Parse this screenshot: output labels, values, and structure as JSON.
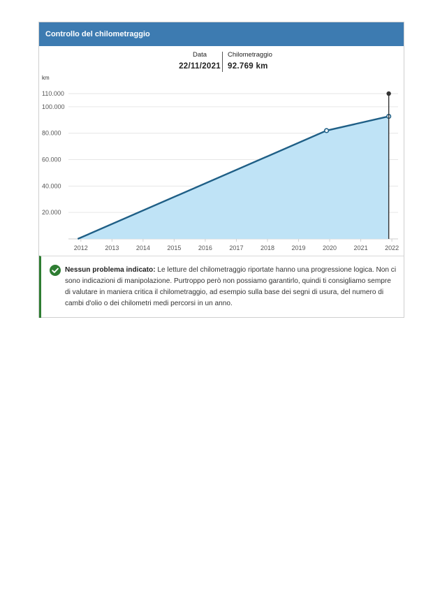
{
  "header": {
    "title": "Controllo del chilometraggio"
  },
  "readout": {
    "date_label": "Data",
    "date_value": "22/11/2021",
    "km_label": "Chilometraggio",
    "km_value": "92.769 km"
  },
  "chart_data": {
    "type": "area",
    "ylabel": "km",
    "xlabel": "",
    "x_ticks": [
      "2012",
      "2013",
      "2014",
      "2015",
      "2016",
      "2017",
      "2018",
      "2019",
      "2020",
      "2021",
      "2022"
    ],
    "y_ticks": [
      {
        "value": 20000,
        "label": "20.000"
      },
      {
        "value": 40000,
        "label": "40.000"
      },
      {
        "value": 60000,
        "label": "60.000"
      },
      {
        "value": 80000,
        "label": "80.000"
      },
      {
        "value": 100000,
        "label": "100.000"
      },
      {
        "value": 110000,
        "label": "110.000"
      }
    ],
    "xlim": [
      2011.6,
      2022.2
    ],
    "ylim": [
      0,
      110000
    ],
    "series": [
      {
        "points": [
          {
            "x": 2011.9,
            "y": 0
          },
          {
            "x": 2019.9,
            "y": 82000
          },
          {
            "x": 2021.9,
            "y": 92769
          }
        ]
      }
    ],
    "marker": {
      "x": 2021.9,
      "y": 92769,
      "label": "22/11/2021"
    },
    "colors": {
      "line": "#1f5f86",
      "fill": "#bfe3f6",
      "grid": "#e6e6e6",
      "marker": "#333333"
    }
  },
  "notice": {
    "bold": "Nessun problema indicato:",
    "text": " Le letture del chilometraggio riportate hanno una progressione logica. Non ci sono indicazioni di manipolazione. Purtroppo però non possiamo garantirlo, quindi ti consigliamo sempre di valutare in maniera critica il chilometraggio, ad esempio sulla base dei segni di usura, del numero di cambi d'olio o dei chilometri medi percorsi in un anno.",
    "icon": "check-circle-icon"
  }
}
